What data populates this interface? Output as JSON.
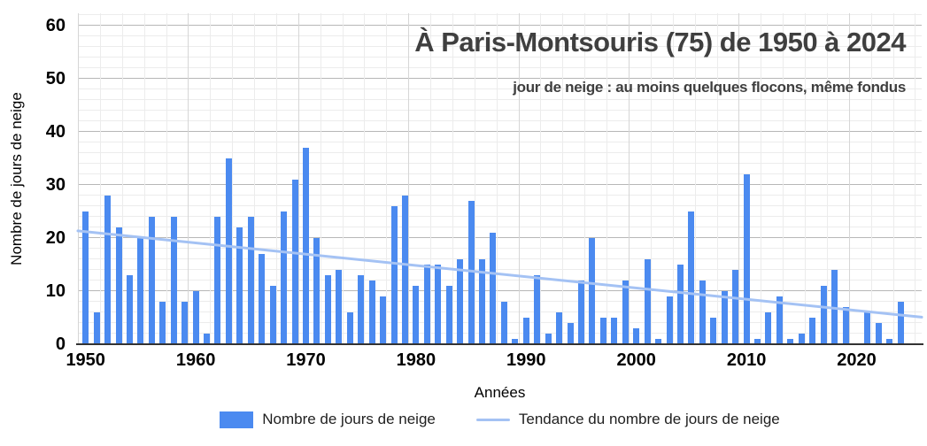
{
  "title": "À Paris-Montsouris (75) de 1950 à 2024",
  "subtitle": "jour de neige : au moins quelques flocons, même fondus",
  "colors": {
    "bar": "#4b8af0",
    "trend": "#a4c2f4",
    "grid_minor": "#ececec",
    "grid_major": "#b7b7b7",
    "axis_line": "#333333",
    "tick_text": "#000000",
    "title_text": "#3f3f3f",
    "legend_text": "#1f1f1f"
  },
  "chart_data": {
    "type": "bar",
    "title": "À Paris-Montsouris (75) de 1950 à 2024",
    "subtitle": "jour de neige : au moins quelques flocons, même fondus",
    "xlabel": "Années",
    "ylabel": "Nombre de jours de neige",
    "ylim": [
      0,
      62
    ],
    "grid": true,
    "legend_position": "bottom",
    "x_ticks": [
      1950,
      1960,
      1970,
      1980,
      1990,
      2000,
      2010,
      2020
    ],
    "y_ticks": [
      0,
      10,
      20,
      30,
      40,
      50,
      60
    ],
    "legend": [
      "Nombre de jours de neige",
      "Tendance du nombre de jours de neige"
    ],
    "categories": [
      1950,
      1951,
      1952,
      1953,
      1954,
      1955,
      1956,
      1957,
      1958,
      1959,
      1960,
      1961,
      1962,
      1963,
      1964,
      1965,
      1966,
      1967,
      1968,
      1969,
      1970,
      1971,
      1972,
      1973,
      1974,
      1975,
      1976,
      1977,
      1978,
      1979,
      1980,
      1981,
      1982,
      1983,
      1984,
      1985,
      1986,
      1987,
      1988,
      1989,
      1990,
      1991,
      1992,
      1993,
      1994,
      1995,
      1996,
      1997,
      1998,
      1999,
      2000,
      2001,
      2002,
      2003,
      2004,
      2005,
      2006,
      2007,
      2008,
      2009,
      2010,
      2011,
      2012,
      2013,
      2014,
      2015,
      2016,
      2017,
      2018,
      2019,
      2020,
      2021,
      2022,
      2023,
      2024
    ],
    "values": [
      25,
      6,
      28,
      22,
      13,
      20,
      24,
      8,
      24,
      8,
      10,
      2,
      24,
      35,
      22,
      24,
      17,
      11,
      25,
      31,
      37,
      20,
      13,
      14,
      6,
      13,
      12,
      9,
      26,
      28,
      11,
      15,
      15,
      11,
      16,
      27,
      16,
      21,
      8,
      1,
      5,
      13,
      2,
      6,
      4,
      12,
      20,
      5,
      5,
      12,
      3,
      16,
      1,
      9,
      15,
      25,
      12,
      5,
      10,
      14,
      32,
      1,
      6,
      9,
      1,
      2,
      5,
      11,
      14,
      7,
      0,
      6,
      4,
      1,
      8
    ],
    "trend": {
      "type": "linear",
      "x": [
        1950,
        2024
      ],
      "y": [
        21.2,
        5.5
      ]
    }
  }
}
